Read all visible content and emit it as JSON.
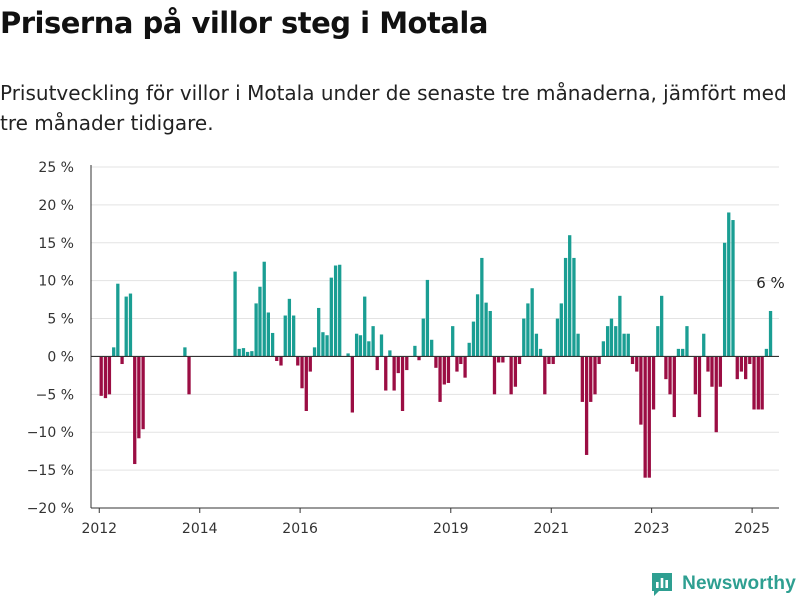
{
  "title": "Priserna på villor steg i Motala",
  "subtitle": "Prisutveckling för villor i Motala under de senaste tre månaderna, jämfört med tre månader tidigare.",
  "brand": {
    "name": "Newsworthy",
    "icon": "newsworthy-logo-icon",
    "color": "#2e9f91"
  },
  "colors": {
    "positive": "#1a9e93",
    "negative": "#9b0d43",
    "grid": "#e3e3e3",
    "axis": "#333333"
  },
  "chart_data": {
    "type": "bar",
    "title": "Priserna på villor steg i Motala",
    "subtitle": "Prisutveckling för villor i Motala under de senaste tre månaderna, jämfört med tre månader tidigare.",
    "y_unit": "%",
    "ylim": [
      -20,
      25
    ],
    "y_ticks": [
      -20,
      -15,
      -10,
      -5,
      0,
      5,
      10,
      15,
      20,
      25
    ],
    "y_tick_labels": [
      "−20 %",
      "−15 %",
      "−10 %",
      "−5 %",
      "0 %",
      "5 %",
      "10 %",
      "15 %",
      "20 %",
      "25 %"
    ],
    "x_tick_labels": [
      "2012",
      "2014",
      "2016",
      "2019",
      "2021",
      "2023",
      "2025"
    ],
    "grid": "horizontal",
    "annotation": {
      "text": "6 %",
      "target": "last bar"
    },
    "series": [
      {
        "values": [
          [
            "2012-01",
            -5.2
          ],
          [
            "2012-02",
            -5.5
          ],
          [
            "2012-03",
            -5.0
          ],
          [
            "2012-04",
            1.2
          ],
          [
            "2012-05",
            9.6
          ],
          [
            "2012-06",
            -1.0
          ],
          [
            "2012-07",
            7.9
          ],
          [
            "2012-08",
            8.3
          ],
          [
            "2012-09",
            -14.2
          ],
          [
            "2012-10",
            -10.8
          ],
          [
            "2012-11",
            -9.6
          ],
          [
            "2013-09",
            1.2
          ],
          [
            "2013-10",
            -5.0
          ],
          [
            "2014-09",
            11.2
          ],
          [
            "2014-10",
            1.0
          ],
          [
            "2014-11",
            1.1
          ],
          [
            "2014-12",
            0.6
          ],
          [
            "2015-01",
            0.7
          ],
          [
            "2015-02",
            7.0
          ],
          [
            "2015-03",
            9.2
          ],
          [
            "2015-04",
            12.5
          ],
          [
            "2015-05",
            5.8
          ],
          [
            "2015-06",
            3.1
          ],
          [
            "2015-07",
            -0.6
          ],
          [
            "2015-08",
            -1.2
          ],
          [
            "2015-09",
            5.4
          ],
          [
            "2015-10",
            7.6
          ],
          [
            "2015-11",
            5.4
          ],
          [
            "2015-12",
            -1.2
          ],
          [
            "2016-01",
            -4.2
          ],
          [
            "2016-02",
            -7.2
          ],
          [
            "2016-03",
            -2.0
          ],
          [
            "2016-04",
            1.2
          ],
          [
            "2016-05",
            6.4
          ],
          [
            "2016-06",
            3.2
          ],
          [
            "2016-07",
            2.8
          ],
          [
            "2016-08",
            10.4
          ],
          [
            "2016-09",
            12.0
          ],
          [
            "2016-10",
            12.1
          ],
          [
            "2016-12",
            0.4
          ],
          [
            "2017-01",
            -7.4
          ],
          [
            "2017-02",
            3.0
          ],
          [
            "2017-03",
            2.8
          ],
          [
            "2017-04",
            7.9
          ],
          [
            "2017-05",
            2.0
          ],
          [
            "2017-06",
            4.0
          ],
          [
            "2017-07",
            -1.8
          ],
          [
            "2017-08",
            2.9
          ],
          [
            "2017-09",
            -4.5
          ],
          [
            "2017-10",
            0.8
          ],
          [
            "2017-11",
            -4.5
          ],
          [
            "2017-12",
            -2.2
          ],
          [
            "2018-01",
            -7.2
          ],
          [
            "2018-02",
            -1.8
          ],
          [
            "2018-04",
            1.4
          ],
          [
            "2018-05",
            -0.5
          ],
          [
            "2018-06",
            5.0
          ],
          [
            "2018-07",
            10.1
          ],
          [
            "2018-08",
            2.2
          ],
          [
            "2018-09",
            -1.5
          ],
          [
            "2018-10",
            -6.0
          ],
          [
            "2018-11",
            -3.7
          ],
          [
            "2018-12",
            -3.5
          ],
          [
            "2019-01",
            4.0
          ],
          [
            "2019-02",
            -2.0
          ],
          [
            "2019-03",
            -1.0
          ],
          [
            "2019-04",
            -2.8
          ],
          [
            "2019-05",
            1.8
          ],
          [
            "2019-06",
            4.6
          ],
          [
            "2019-07",
            8.2
          ],
          [
            "2019-08",
            13.0
          ],
          [
            "2019-09",
            7.1
          ],
          [
            "2019-10",
            6.0
          ],
          [
            "2019-11",
            -5.0
          ],
          [
            "2019-12",
            -0.8
          ],
          [
            "2020-01",
            -0.8
          ],
          [
            "2020-03",
            -5.0
          ],
          [
            "2020-04",
            -4.0
          ],
          [
            "2020-05",
            -1.0
          ],
          [
            "2020-06",
            5.0
          ],
          [
            "2020-07",
            7.0
          ],
          [
            "2020-08",
            9.0
          ],
          [
            "2020-09",
            3.0
          ],
          [
            "2020-10",
            1.0
          ],
          [
            "2020-11",
            -5.0
          ],
          [
            "2020-12",
            -1.0
          ],
          [
            "2021-01",
            -1.0
          ],
          [
            "2021-02",
            5.0
          ],
          [
            "2021-03",
            7.0
          ],
          [
            "2021-04",
            13.0
          ],
          [
            "2021-05",
            16.0
          ],
          [
            "2021-06",
            13.0
          ],
          [
            "2021-07",
            3.0
          ],
          [
            "2021-08",
            -6.0
          ],
          [
            "2021-09",
            -13.0
          ],
          [
            "2021-10",
            -6.0
          ],
          [
            "2021-11",
            -5.0
          ],
          [
            "2021-12",
            -1.0
          ],
          [
            "2022-01",
            2.0
          ],
          [
            "2022-02",
            4.0
          ],
          [
            "2022-03",
            5.0
          ],
          [
            "2022-04",
            4.0
          ],
          [
            "2022-05",
            8.0
          ],
          [
            "2022-06",
            3.0
          ],
          [
            "2022-07",
            3.0
          ],
          [
            "2022-08",
            -1.0
          ],
          [
            "2022-09",
            -2.0
          ],
          [
            "2022-10",
            -9.0
          ],
          [
            "2022-11",
            -16.0
          ],
          [
            "2022-12",
            -16.0
          ],
          [
            "2023-01",
            -7.0
          ],
          [
            "2023-02",
            4.0
          ],
          [
            "2023-03",
            8.0
          ],
          [
            "2023-04",
            -3.0
          ],
          [
            "2023-05",
            -5.0
          ],
          [
            "2023-06",
            -8.0
          ],
          [
            "2023-07",
            1.0
          ],
          [
            "2023-08",
            1.0
          ],
          [
            "2023-09",
            4.0
          ],
          [
            "2023-11",
            -5.0
          ],
          [
            "2023-12",
            -8.0
          ],
          [
            "2024-01",
            3.0
          ],
          [
            "2024-02",
            -2.0
          ],
          [
            "2024-03",
            -4.0
          ],
          [
            "2024-04",
            -10.0
          ],
          [
            "2024-05",
            -4.0
          ],
          [
            "2024-06",
            15.0
          ],
          [
            "2024-07",
            19.0
          ],
          [
            "2024-08",
            18.0
          ],
          [
            "2024-09",
            -3.0
          ],
          [
            "2024-10",
            -2.0
          ],
          [
            "2024-11",
            -3.0
          ],
          [
            "2024-12",
            -1.0
          ],
          [
            "2025-01",
            -7.0
          ],
          [
            "2025-02",
            -7.0
          ],
          [
            "2025-03",
            -7.0
          ],
          [
            "2025-04",
            1.0
          ],
          [
            "2025-05",
            6.0
          ]
        ]
      }
    ]
  }
}
